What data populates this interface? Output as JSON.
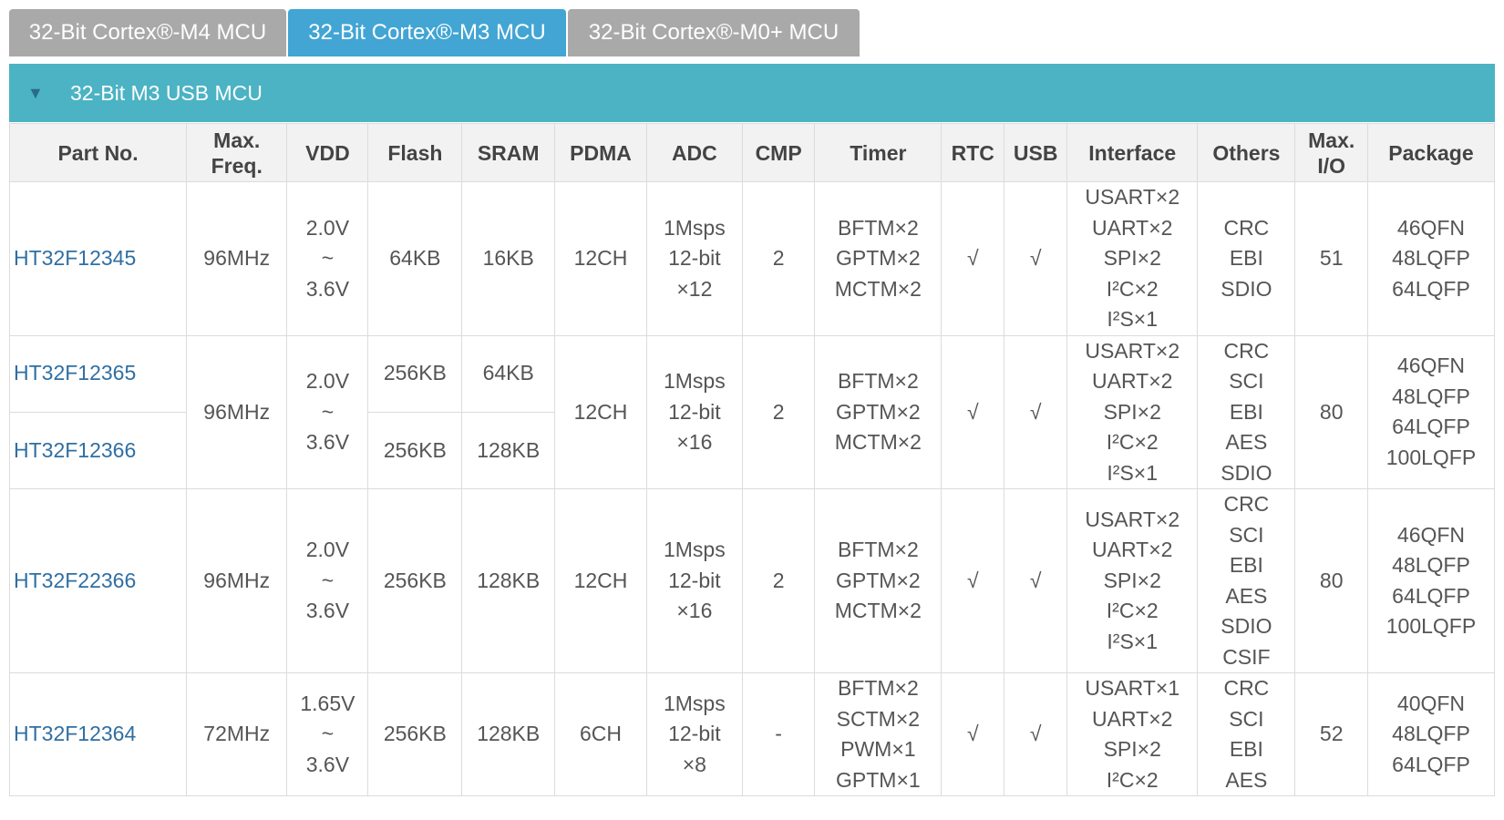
{
  "tabs": [
    {
      "label": "32-Bit Cortex®-M4 MCU",
      "active": false
    },
    {
      "label": "32-Bit Cortex®-M3 MCU",
      "active": true
    },
    {
      "label": "32-Bit Cortex®-M0+ MCU",
      "active": false
    }
  ],
  "group": {
    "arrow_icon": "triangle-down-icon",
    "label": "32-Bit M3 USB MCU"
  },
  "columns": [
    "Part No.",
    "Max. Freq.",
    "VDD",
    "Flash",
    "SRAM",
    "PDMA",
    "ADC",
    "CMP",
    "Timer",
    "RTC",
    "USB",
    "Interface",
    "Others",
    "Max. I/O",
    "Package"
  ],
  "colors": {
    "tab_active": "#42a5d4",
    "tab_inactive": "#a9a9a9",
    "group_bar": "#4bb3c4",
    "link": "#2f6fa3",
    "header_bg": "#f2f2f2"
  },
  "rows": {
    "r1": {
      "part": "HT32F12345",
      "freq": "96MHz",
      "vdd": [
        "2.0V",
        "~",
        "3.6V"
      ],
      "flash": "64KB",
      "sram": "16KB",
      "pdma": "12CH",
      "adc": [
        "1Msps",
        "12-bit",
        "×12"
      ],
      "cmp": "2",
      "timer": [
        "BFTM×2",
        "GPTM×2",
        "MCTM×2"
      ],
      "rtc": "√",
      "usb": "√",
      "interface": [
        "USART×2",
        "UART×2",
        "SPI×2",
        "I²C×2",
        "I²S×1"
      ],
      "others": [
        "CRC",
        "EBI",
        "SDIO"
      ],
      "io": "51",
      "package": [
        "46QFN",
        "48LQFP",
        "64LQFP"
      ]
    },
    "r2": {
      "part_a": "HT32F12365",
      "part_b": "HT32F12366",
      "freq": "96MHz",
      "vdd": [
        "2.0V",
        "~",
        "3.6V"
      ],
      "flash_a": "256KB",
      "sram_a": "64KB",
      "flash_b": "256KB",
      "sram_b": "128KB",
      "pdma": "12CH",
      "adc": [
        "1Msps",
        "12-bit",
        "×16"
      ],
      "cmp": "2",
      "timer": [
        "BFTM×2",
        "GPTM×2",
        "MCTM×2"
      ],
      "rtc": "√",
      "usb": "√",
      "interface": [
        "USART×2",
        "UART×2",
        "SPI×2",
        "I²C×2",
        "I²S×1"
      ],
      "others": [
        "CRC",
        "SCI",
        "EBI",
        "AES",
        "SDIO"
      ],
      "io": "80",
      "package": [
        "46QFN",
        "48LQFP",
        "64LQFP",
        "100LQFP"
      ]
    },
    "r3": {
      "part": "HT32F22366",
      "freq": "96MHz",
      "vdd": [
        "2.0V",
        "~",
        "3.6V"
      ],
      "flash": "256KB",
      "sram": "128KB",
      "pdma": "12CH",
      "adc": [
        "1Msps",
        "12-bit",
        "×16"
      ],
      "cmp": "2",
      "timer": [
        "BFTM×2",
        "GPTM×2",
        "MCTM×2"
      ],
      "rtc": "√",
      "usb": "√",
      "interface": [
        "USART×2",
        "UART×2",
        "SPI×2",
        "I²C×2",
        "I²S×1"
      ],
      "others": [
        "CRC",
        "SCI",
        "EBI",
        "AES",
        "SDIO",
        "CSIF"
      ],
      "io": "80",
      "package": [
        "46QFN",
        "48LQFP",
        "64LQFP",
        "100LQFP"
      ]
    },
    "r4": {
      "part": "HT32F12364",
      "freq": "72MHz",
      "vdd": [
        "1.65V",
        "~",
        "3.6V"
      ],
      "flash": "256KB",
      "sram": "128KB",
      "pdma": "6CH",
      "adc": [
        "1Msps",
        "12-bit",
        "×8"
      ],
      "cmp": "-",
      "timer": [
        "BFTM×2",
        "SCTM×2",
        "PWM×1",
        "GPTM×1"
      ],
      "rtc": "√",
      "usb": "√",
      "interface": [
        "USART×1",
        "UART×2",
        "SPI×2",
        "I²C×2"
      ],
      "others": [
        "CRC",
        "SCI",
        "EBI",
        "AES"
      ],
      "io": "52",
      "package": [
        "40QFN",
        "48LQFP",
        "64LQFP"
      ]
    }
  }
}
